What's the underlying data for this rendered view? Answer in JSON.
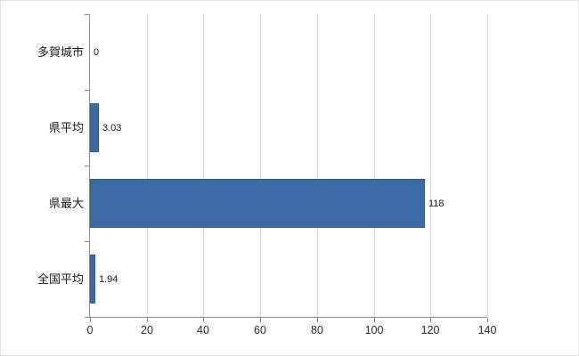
{
  "chart": {
    "background": "#ffffff",
    "bar_color": "#3a6ba4",
    "bar_border_color": "#2f5c93",
    "axis_color": "#8c8c8c",
    "grid_color": "#d9d9d9",
    "text_color": "#1a1a1a"
  },
  "chart_data": {
    "type": "bar",
    "orientation": "horizontal",
    "title": "",
    "categories": [
      "多賀城市",
      "県平均",
      "県最大",
      "全国平均"
    ],
    "values": [
      0,
      3.03,
      118,
      1.94
    ],
    "value_labels": [
      "0",
      "3.03",
      "118",
      "1.94"
    ],
    "xlabel": "",
    "ylabel": "",
    "xlim": [
      0,
      140
    ],
    "xticks": [
      0,
      20,
      40,
      60,
      80,
      100,
      120,
      140
    ],
    "grid": true,
    "legend": false
  }
}
